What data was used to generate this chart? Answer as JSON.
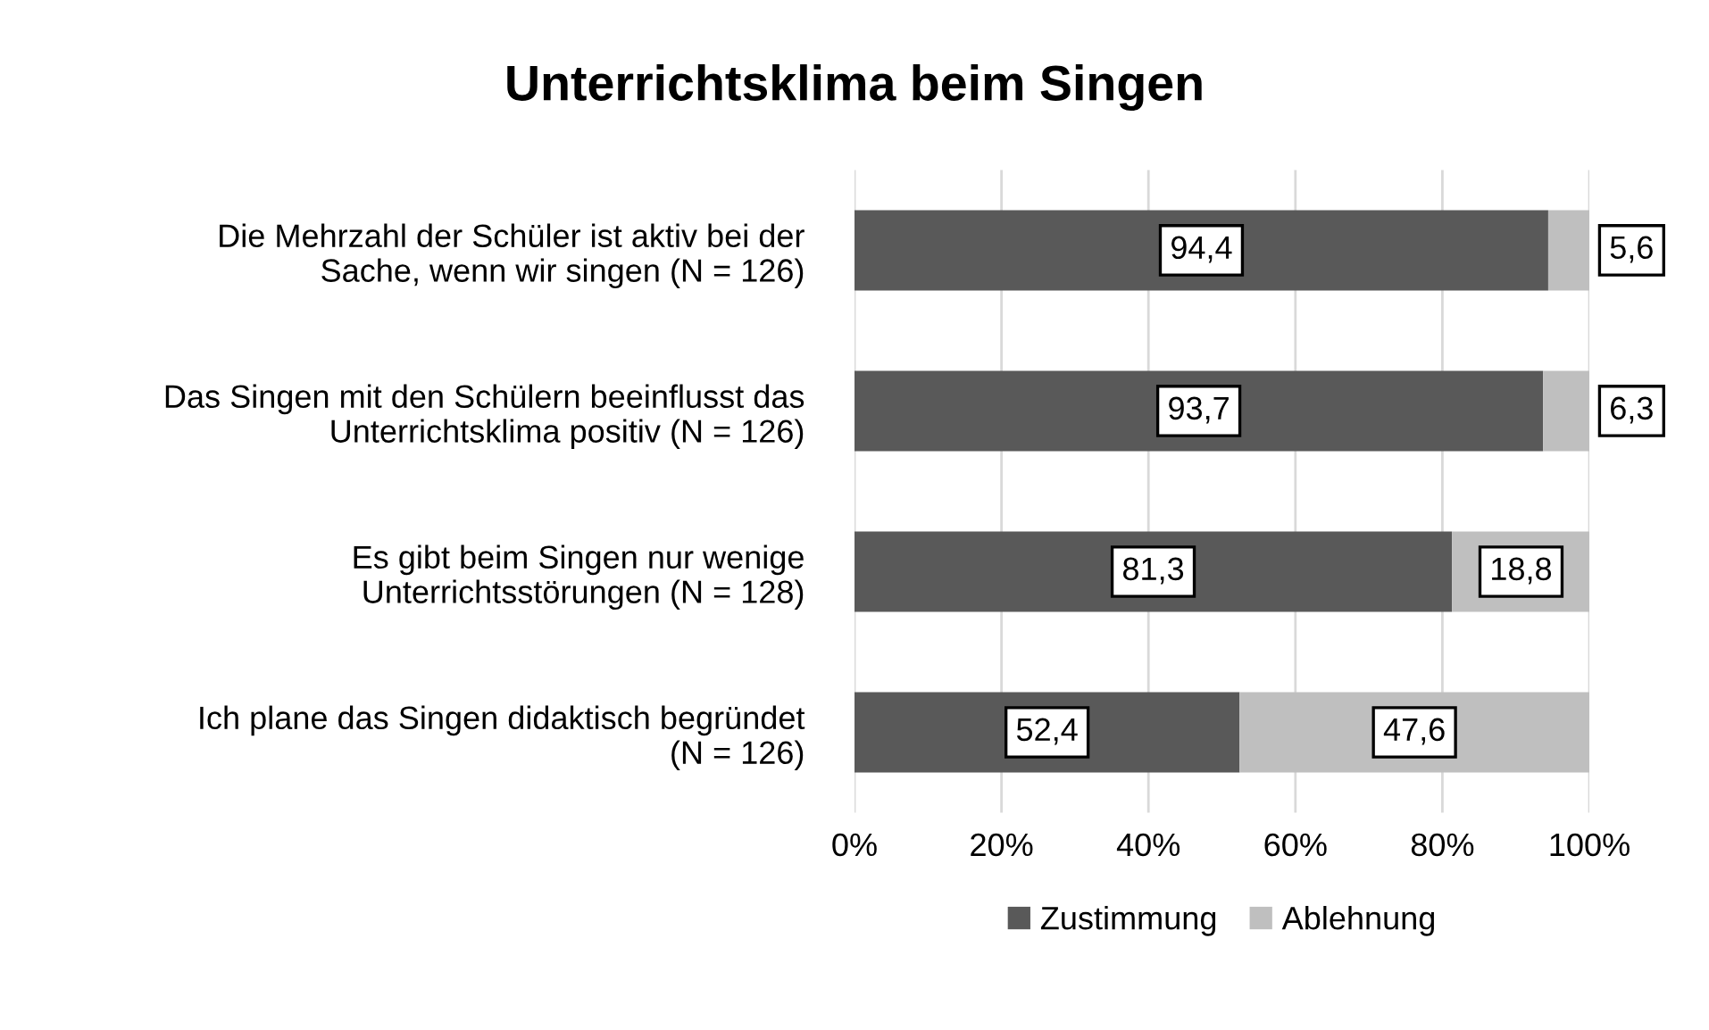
{
  "chart_data": {
    "type": "bar",
    "orientation": "horizontal",
    "stacked": true,
    "title": "Unterrichtsklima beim Singen",
    "categories": [
      "Die Mehrzahl der Schüler ist aktiv bei der\nSache, wenn wir singen (N = 126)",
      "Das Singen mit den Schülern beeinflusst das\nUnterrichtsklima positiv (N = 126)",
      "Es gibt beim Singen nur wenige\nUnterrichtsstörungen (N = 128)",
      "Ich plane das Singen didaktisch begründet\n(N = 126)"
    ],
    "series": [
      {
        "name": "Zustimmung",
        "color": "#595959",
        "values": [
          94.4,
          93.7,
          81.3,
          52.4
        ],
        "value_labels": [
          "94,4",
          "93,7",
          "81,3",
          "52,4"
        ]
      },
      {
        "name": "Ablehnung",
        "color": "#bfbfbf",
        "values": [
          5.6,
          6.3,
          18.8,
          47.6
        ],
        "value_labels": [
          "5,6",
          "6,3",
          "18,8",
          "47,6"
        ]
      }
    ],
    "xlim": [
      0,
      100
    ],
    "xticks": [
      {
        "value": 0,
        "label": "0%"
      },
      {
        "value": 20,
        "label": "20%"
      },
      {
        "value": 40,
        "label": "40%"
      },
      {
        "value": 60,
        "label": "60%"
      },
      {
        "value": 80,
        "label": "80%"
      },
      {
        "value": 100,
        "label": "100%"
      }
    ],
    "grid": "x",
    "legend": "bottom"
  }
}
